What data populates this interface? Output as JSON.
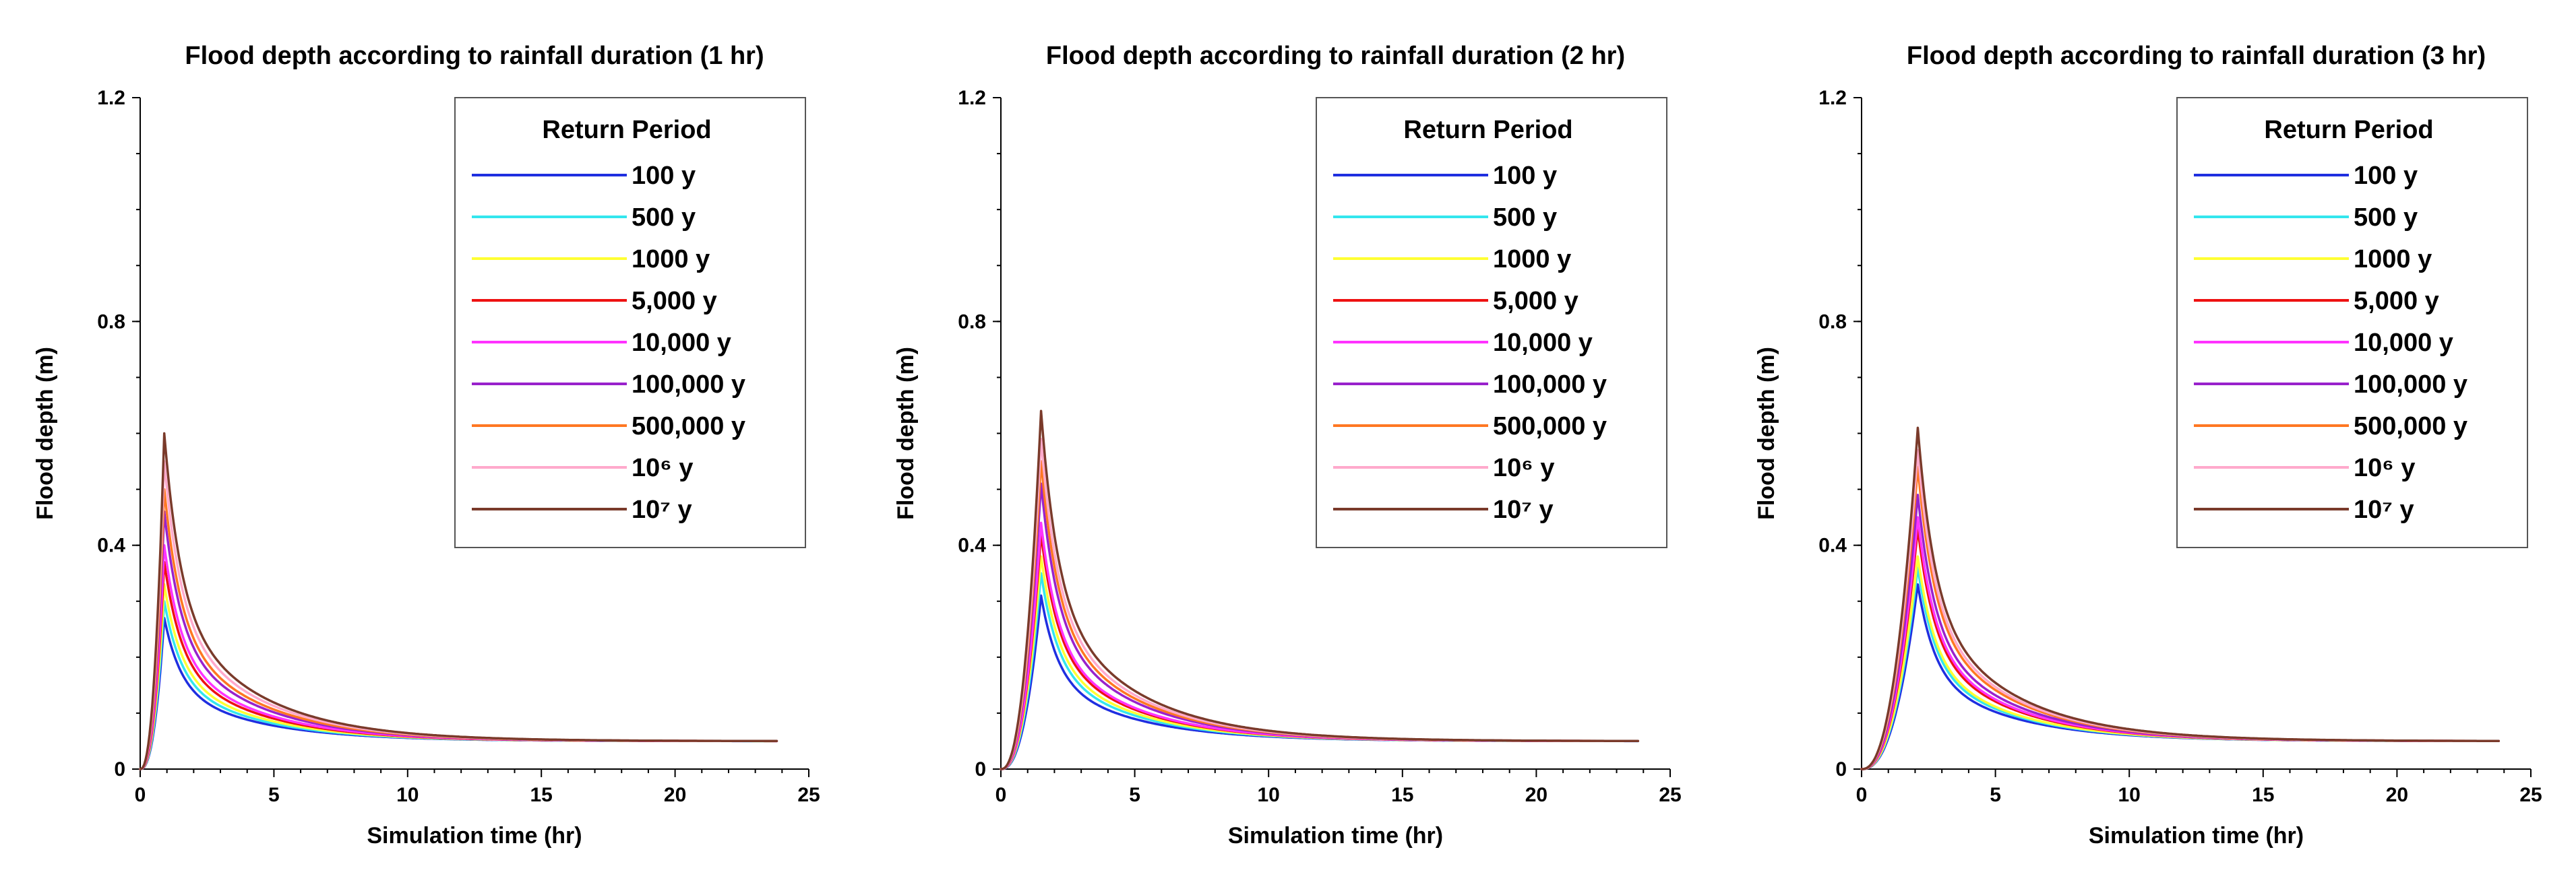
{
  "chart_data": [
    {
      "type": "line",
      "title": "Flood depth according to rainfall duration (1 hr)",
      "xlabel": "Simulation time (hr)",
      "ylabel": "Flood depth (m)",
      "xlim": [
        0,
        25
      ],
      "ylim": [
        0,
        1.2
      ],
      "xticks": [
        "0",
        "5",
        "10",
        "15",
        "20",
        "25"
      ],
      "yticks": [
        "0",
        "0.4",
        "0.8",
        "1.2"
      ],
      "legend_title": "Return Period",
      "legend_position": "top-right",
      "peak_time": 0.9,
      "series": [
        {
          "name": "100 y",
          "color": "#1f2fe0",
          "peak": 0.27
        },
        {
          "name": "500 y",
          "color": "#33e6ee",
          "peak": 0.3
        },
        {
          "name": "1000 y",
          "color": "#ffff33",
          "peak": 0.33
        },
        {
          "name": "5,000 y",
          "color": "#ee1111",
          "peak": 0.37
        },
        {
          "name": "10,000 y",
          "color": "#ff33ff",
          "peak": 0.4
        },
        {
          "name": "100,000 y",
          "color": "#9922cc",
          "peak": 0.46
        },
        {
          "name": "500,000 y",
          "color": "#ff7722",
          "peak": 0.5
        },
        {
          "name": "10⁶ y",
          "color": "#ffaacc",
          "peak": 0.55
        },
        {
          "name": "10⁷ y",
          "color": "#7a3a2a",
          "peak": 0.6
        }
      ]
    },
    {
      "type": "line",
      "title": "Flood depth according to rainfall duration (2 hr)",
      "xlabel": "Simulation time (hr)",
      "ylabel": "Flood depth (m)",
      "xlim": [
        0,
        25
      ],
      "ylim": [
        0,
        1.2
      ],
      "xticks": [
        "0",
        "5",
        "10",
        "15",
        "20",
        "25"
      ],
      "yticks": [
        "0",
        "0.4",
        "0.8",
        "1.2"
      ],
      "legend_title": "Return Period",
      "legend_position": "top-right",
      "peak_time": 1.5,
      "series": [
        {
          "name": "100 y",
          "color": "#1f2fe0",
          "peak": 0.31
        },
        {
          "name": "500 y",
          "color": "#33e6ee",
          "peak": 0.35
        },
        {
          "name": "1000 y",
          "color": "#ffff33",
          "peak": 0.38
        },
        {
          "name": "5,000 y",
          "color": "#ee1111",
          "peak": 0.42
        },
        {
          "name": "10,000 y",
          "color": "#ff33ff",
          "peak": 0.44
        },
        {
          "name": "100,000 y",
          "color": "#9922cc",
          "peak": 0.51
        },
        {
          "name": "500,000 y",
          "color": "#ff7722",
          "peak": 0.55
        },
        {
          "name": "10⁶ y",
          "color": "#ffaacc",
          "peak": 0.59
        },
        {
          "name": "10⁷ y",
          "color": "#7a3a2a",
          "peak": 0.64
        }
      ]
    },
    {
      "type": "line",
      "title": "Flood depth according to rainfall duration (3 hr)",
      "xlabel": "Simulation time (hr)",
      "ylabel": "Flood depth (m)",
      "xlim": [
        0,
        25
      ],
      "ylim": [
        0,
        1.2
      ],
      "xticks": [
        "0",
        "5",
        "10",
        "15",
        "20",
        "25"
      ],
      "yticks": [
        "0",
        "0.4",
        "0.8",
        "1.2"
      ],
      "legend_title": "Return Period",
      "legend_position": "top-right",
      "peak_time": 2.1,
      "series": [
        {
          "name": "100 y",
          "color": "#1f2fe0",
          "peak": 0.33
        },
        {
          "name": "500 y",
          "color": "#33e6ee",
          "peak": 0.36
        },
        {
          "name": "1000 y",
          "color": "#ffff33",
          "peak": 0.38
        },
        {
          "name": "5,000 y",
          "color": "#ee1111",
          "peak": 0.43
        },
        {
          "name": "10,000 y",
          "color": "#ff33ff",
          "peak": 0.45
        },
        {
          "name": "100,000 y",
          "color": "#9922cc",
          "peak": 0.49
        },
        {
          "name": "500,000 y",
          "color": "#ff7722",
          "peak": 0.54
        },
        {
          "name": "10⁶ y",
          "color": "#ffaacc",
          "peak": 0.57
        },
        {
          "name": "10⁷ y",
          "color": "#7a3a2a",
          "peak": 0.61
        }
      ]
    }
  ]
}
